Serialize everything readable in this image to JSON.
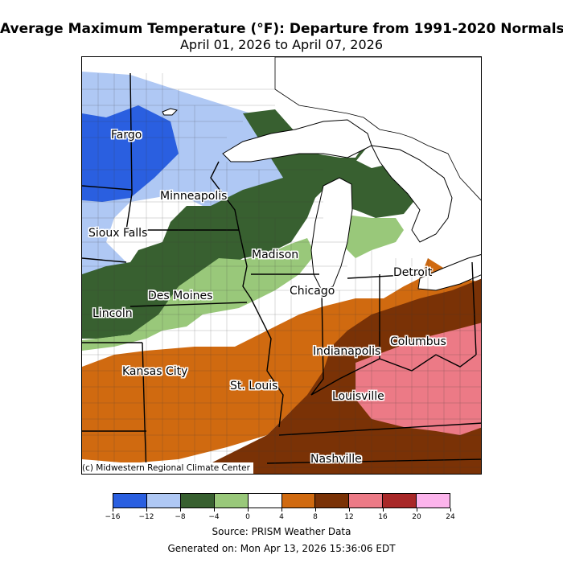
{
  "title": "Average Maximum Temperature (°F): Departure from 1991-2020 Normals",
  "subtitle": "April 01, 2026 to April 07, 2026",
  "copyright": "(c) Midwestern Regional Climate Center",
  "source": "Source: PRISM Weather Data",
  "generated": "Generated on: Mon Apr 13, 2026 15:36:06 EDT",
  "cities": [
    {
      "name": "Fargo"
    },
    {
      "name": "Minneapolis"
    },
    {
      "name": "Sioux Falls"
    },
    {
      "name": "Madison"
    },
    {
      "name": "Detroit"
    },
    {
      "name": "Chicago"
    },
    {
      "name": "Des Moines"
    },
    {
      "name": "Lincoln"
    },
    {
      "name": "Columbus"
    },
    {
      "name": "Indianapolis"
    },
    {
      "name": "Kansas City"
    },
    {
      "name": "St. Louis"
    },
    {
      "name": "Louisville"
    },
    {
      "name": "Nashville"
    }
  ],
  "legend": {
    "ticks": [
      "−16",
      "−12",
      "−8",
      "−4",
      "0",
      "4",
      "8",
      "12",
      "16",
      "20",
      "24"
    ],
    "colors": [
      "#2a5fe0",
      "#afc8f4",
      "#386030",
      "#99c87a",
      "#ffffff",
      "#d06a10",
      "#7a3206",
      "#ec7a86",
      "#a82828",
      "#fcb4ec"
    ]
  },
  "colors": {
    "water": "#ffffff",
    "border": "#000000",
    "county_line": "#555555"
  }
}
